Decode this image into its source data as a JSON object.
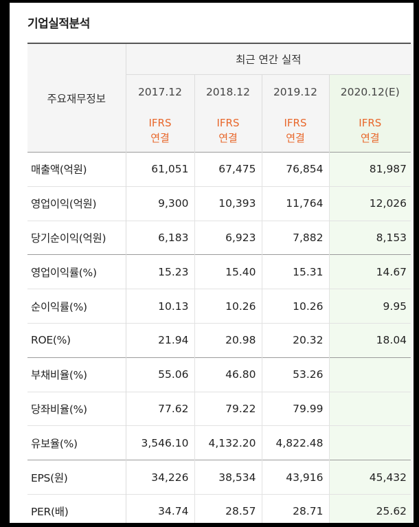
{
  "section_title": "기업실적분석",
  "header": {
    "group_label": "최근 연간 실적",
    "item_label": "주요재무정보",
    "years": [
      "2017.12",
      "2018.12",
      "2019.12",
      "2020.12(E)"
    ],
    "ifrs_line1": "IFRS",
    "ifrs_line2": "연결"
  },
  "rows": [
    {
      "label": "매출액(억원)",
      "values": [
        "61,051",
        "67,475",
        "76,854",
        "81,987"
      ]
    },
    {
      "label": "영업이익(억원)",
      "values": [
        "9,300",
        "10,393",
        "11,764",
        "12,026"
      ]
    },
    {
      "label": "당기순이익(억원)",
      "values": [
        "6,183",
        "6,923",
        "7,882",
        "8,153"
      ]
    },
    {
      "label": "영업이익률(%)",
      "values": [
        "15.23",
        "15.40",
        "15.31",
        "14.67"
      ]
    },
    {
      "label": "순이익률(%)",
      "values": [
        "10.13",
        "10.26",
        "10.26",
        "9.95"
      ]
    },
    {
      "label": "ROE(%)",
      "values": [
        "21.94",
        "20.98",
        "20.32",
        "18.04"
      ]
    },
    {
      "label": "부채비율(%)",
      "values": [
        "55.06",
        "46.80",
        "53.26",
        ""
      ]
    },
    {
      "label": "당좌비율(%)",
      "values": [
        "77.62",
        "79.22",
        "79.99",
        ""
      ]
    },
    {
      "label": "유보율(%)",
      "values": [
        "3,546.10",
        "4,132.20",
        "4,822.48",
        ""
      ]
    },
    {
      "label": "EPS(원)",
      "values": [
        "34,226",
        "38,534",
        "43,916",
        "45,432"
      ]
    },
    {
      "label": "PER(배)",
      "values": [
        "34.74",
        "28.57",
        "28.71",
        "25.62"
      ]
    }
  ]
}
